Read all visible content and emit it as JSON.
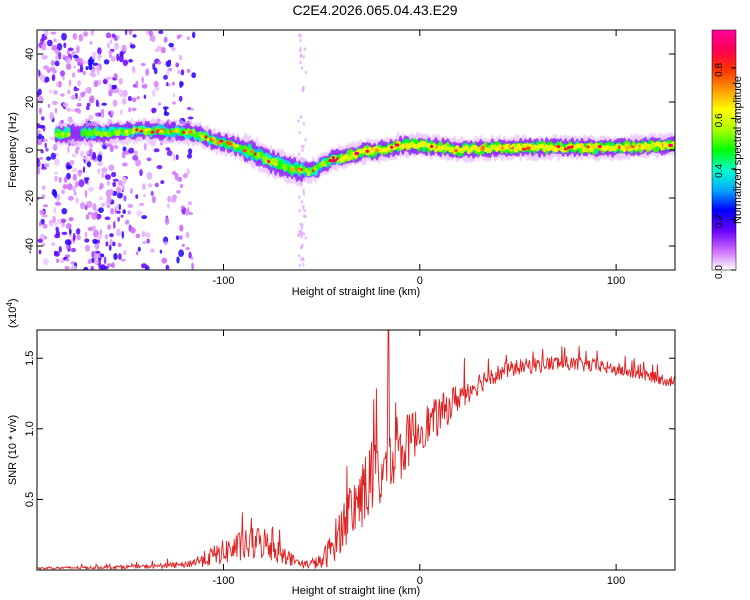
{
  "title": "C2E4.2026.065.04.43.E29",
  "chart_data": [
    {
      "type": "heatmap",
      "name": "spectrogram",
      "xlabel": "Height of straight line (km)",
      "ylabel": "Frequency (Hz)",
      "xlim": [
        -195,
        130
      ],
      "ylim": [
        -50,
        50
      ],
      "xticks": [
        -100,
        0,
        100
      ],
      "yticks": [
        -40,
        -20,
        0,
        20,
        40
      ],
      "colorbar": {
        "label": "Normalized spectral amplitude",
        "range": [
          0,
          0.95
        ],
        "ticks": [
          "0.0",
          "0.2",
          "0.4",
          "0.6",
          "0.8"
        ],
        "tick_values": [
          0.0,
          0.2,
          0.4,
          0.6,
          0.8
        ],
        "colormap": [
          "#ffffff",
          "#cc66ff",
          "#6600ff",
          "#0000ff",
          "#00aaff",
          "#00ffcc",
          "#00ff00",
          "#aaff00",
          "#ffff00",
          "#ff9900",
          "#ff3300",
          "#ff0055",
          "#ff0099"
        ]
      },
      "ridge": {
        "x": [
          -180,
          -160,
          -145,
          -130,
          -115,
          -105,
          -95,
          -85,
          -75,
          -65,
          -55,
          -45,
          -38,
          -30,
          -20,
          -10,
          0,
          10,
          20,
          40,
          60,
          80,
          100,
          130
        ],
        "y": [
          7,
          7,
          8,
          8,
          7,
          4,
          2,
          -1,
          -5,
          -8,
          -9,
          -4,
          -3,
          -1,
          0,
          2,
          2,
          1,
          0,
          1,
          1,
          1,
          1,
          2
        ]
      }
    },
    {
      "type": "line",
      "name": "snr",
      "xlabel": "Height of straight line (km)",
      "ylabel": "SNR (10 * v/v)",
      "scale_label": "(x10",
      "scale_exp": "4",
      "scale_close": ")",
      "xlim": [
        -195,
        130
      ],
      "ylim": [
        0,
        1.7
      ],
      "xticks": [
        -100,
        0,
        100
      ],
      "yticks": [
        "0.5",
        "1.0",
        "1.5"
      ],
      "ytick_values": [
        0.5,
        1.0,
        1.5
      ],
      "line_color": "#e02020",
      "envelope": {
        "x": [
          -195,
          -140,
          -120,
          -110,
          -95,
          -80,
          -70,
          -60,
          -50,
          -45,
          -40,
          -35,
          -30,
          -25,
          -20,
          -15,
          -10,
          -5,
          0,
          10,
          20,
          35,
          50,
          70,
          90,
          110,
          130
        ],
        "base": [
          0.01,
          0.02,
          0.03,
          0.06,
          0.12,
          0.16,
          0.09,
          0.03,
          0.04,
          0.12,
          0.25,
          0.35,
          0.45,
          0.55,
          0.6,
          0.65,
          0.75,
          0.88,
          0.95,
          1.05,
          1.2,
          1.35,
          1.42,
          1.45,
          1.43,
          1.38,
          1.32
        ],
        "noise": [
          0.01,
          0.02,
          0.03,
          0.08,
          0.15,
          0.18,
          0.1,
          0.03,
          0.08,
          0.18,
          0.25,
          0.3,
          0.35,
          0.4,
          0.4,
          0.35,
          0.3,
          0.28,
          0.22,
          0.2,
          0.15,
          0.1,
          0.08,
          0.08,
          0.07,
          0.06,
          0.06
        ]
      },
      "spike": {
        "x": -16,
        "y": 1.72
      }
    }
  ]
}
